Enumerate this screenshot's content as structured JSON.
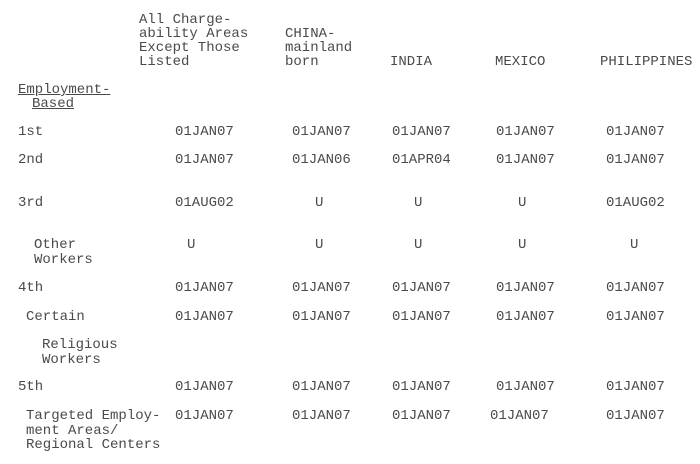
{
  "header": {
    "columns": [
      [
        "All Charge-",
        "ability Areas",
        "Except Those",
        "Listed"
      ],
      [
        "CHINA-",
        "mainland",
        "born"
      ],
      [
        "INDIA"
      ],
      [
        "MEXICO"
      ],
      [
        "PHILIPPINES"
      ]
    ]
  },
  "section_label": [
    "Employment-",
    "Based"
  ],
  "rows": [
    {
      "label": [
        "1st"
      ],
      "values": [
        "01JAN07",
        "01JAN07",
        "01JAN07",
        "01JAN07",
        "01JAN07"
      ]
    },
    {
      "label": [
        "2nd"
      ],
      "values": [
        "01JAN07",
        "01JAN06",
        "01APR04",
        "01JAN07",
        "01JAN07"
      ]
    },
    {
      "label": [
        "3rd"
      ],
      "values": [
        "01AUG02",
        "U",
        "U",
        "U",
        "01AUG02"
      ]
    },
    {
      "label": [
        "Other",
        "Workers"
      ],
      "values": [
        "U",
        "U",
        "U",
        "U",
        "U"
      ]
    },
    {
      "label": [
        "4th"
      ],
      "values": [
        "01JAN07",
        "01JAN07",
        "01JAN07",
        "01JAN07",
        "01JAN07"
      ]
    },
    {
      "label": [
        "Certain"
      ],
      "values": [
        "01JAN07",
        "01JAN07",
        "01JAN07",
        "01JAN07",
        "01JAN07"
      ]
    },
    {
      "label": [
        "Religious",
        "Workers"
      ],
      "values": []
    },
    {
      "label": [
        "5th"
      ],
      "values": [
        "01JAN07",
        "01JAN07",
        "01JAN07",
        "01JAN07",
        "01JAN07"
      ]
    },
    {
      "label": [
        "Targeted Employ-",
        "ment Areas/",
        "Regional Centers"
      ],
      "values": [
        "01JAN07",
        "01JAN07",
        "01JAN07",
        "01JAN07",
        "01JAN07"
      ]
    }
  ]
}
